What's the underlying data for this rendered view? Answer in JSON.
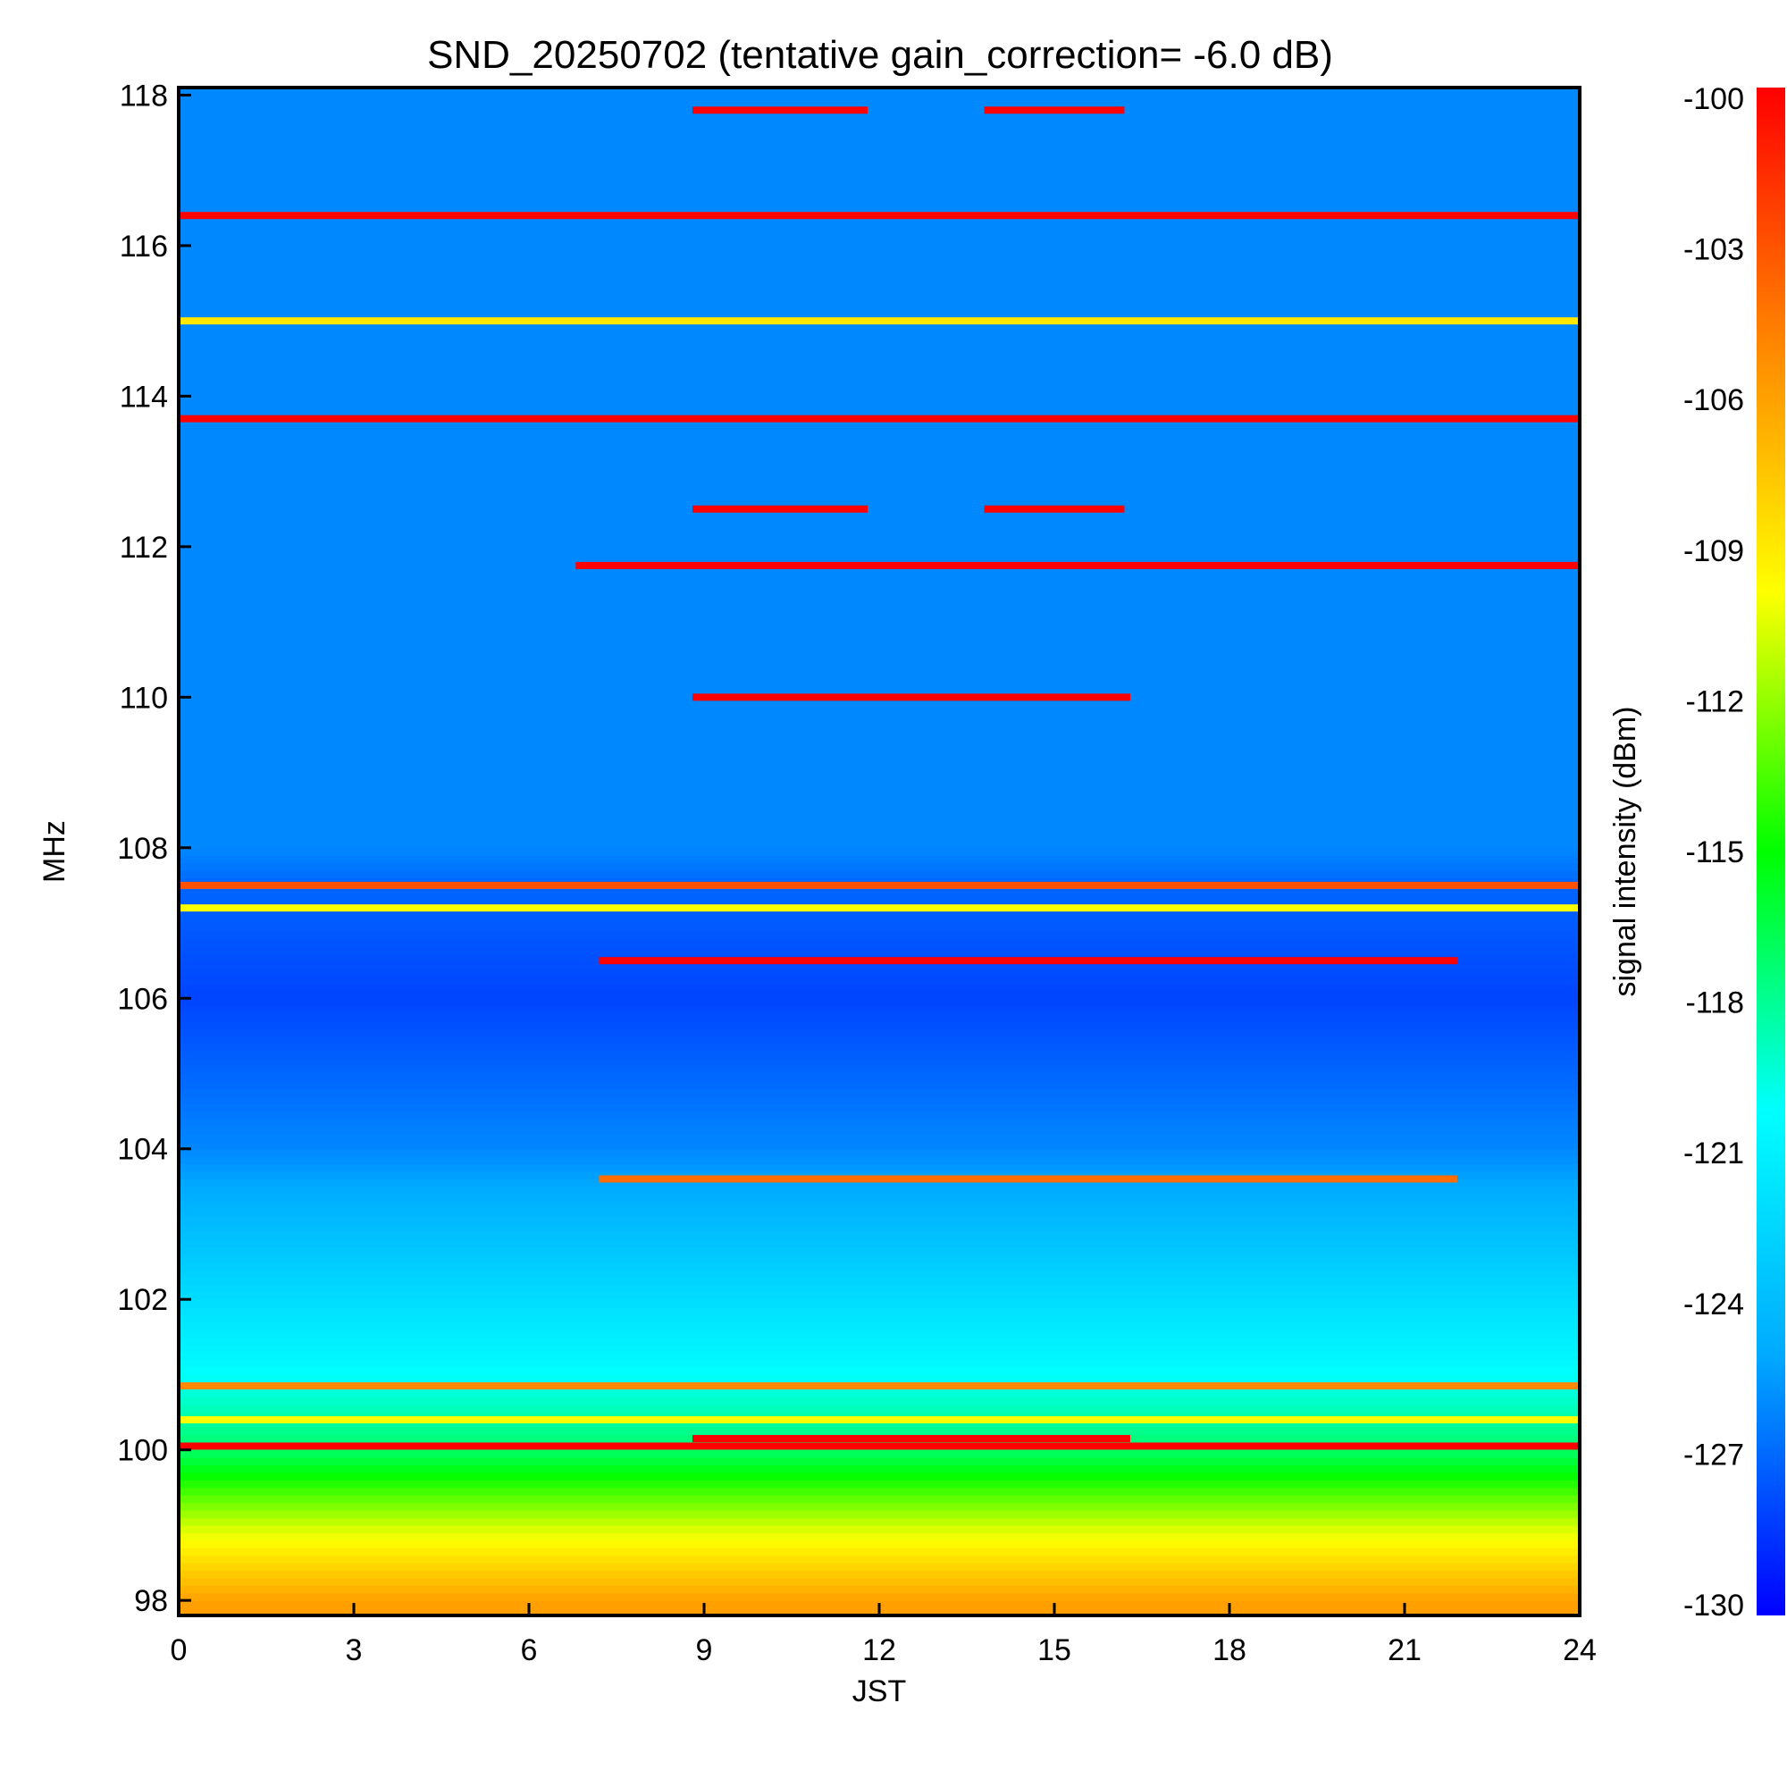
{
  "chart_data": {
    "type": "heatmap",
    "title": "SND_20250702 (tentative gain_correction= -6.0 dB)",
    "xlabel": "JST",
    "ylabel": "MHz",
    "colorbar_label": "signal intensity (dBm)",
    "xlim": [
      0,
      24
    ],
    "ylim": [
      97.8,
      118.1
    ],
    "x_ticks": [
      "0",
      "3",
      "6",
      "9",
      "12",
      "15",
      "18",
      "21",
      "24"
    ],
    "y_ticks": [
      "98",
      "100",
      "102",
      "104",
      "106",
      "108",
      "110",
      "112",
      "114",
      "116",
      "118"
    ],
    "colorbar_ticks": [
      "-100",
      "-103",
      "-106",
      "-109",
      "-112",
      "-115",
      "-118",
      "-121",
      "-124",
      "-127",
      "-130"
    ],
    "color_range_dbm": [
      -130,
      -100
    ],
    "colormap": [
      "#0000ff",
      "#00aaff",
      "#00ffff",
      "#00ff00",
      "#ffff00",
      "#ff8800",
      "#ff0000"
    ],
    "background_profile": [
      {
        "mhz": 98.0,
        "dbm": -106
      },
      {
        "mhz": 99.0,
        "dbm": -111
      },
      {
        "mhz": 100.0,
        "dbm": -117
      },
      {
        "mhz": 101.0,
        "dbm": -120
      },
      {
        "mhz": 102.0,
        "dbm": -122
      },
      {
        "mhz": 103.0,
        "dbm": -124
      },
      {
        "mhz": 104.0,
        "dbm": -126
      },
      {
        "mhz": 105.0,
        "dbm": -127
      },
      {
        "mhz": 106.0,
        "dbm": -128
      },
      {
        "mhz": 107.5,
        "dbm": -127
      },
      {
        "mhz": 108.0,
        "dbm": -126
      },
      {
        "mhz": 118.0,
        "dbm": -126
      }
    ],
    "strong_signals": [
      {
        "mhz": 117.8,
        "start_h": 8.8,
        "end_h": 11.8,
        "dbm": -100
      },
      {
        "mhz": 117.8,
        "start_h": 13.8,
        "end_h": 16.2,
        "dbm": -100
      },
      {
        "mhz": 116.4,
        "start_h": 0,
        "end_h": 24,
        "dbm": -100
      },
      {
        "mhz": 115.0,
        "start_h": 0,
        "end_h": 24,
        "dbm": -109
      },
      {
        "mhz": 113.7,
        "start_h": 0,
        "end_h": 24,
        "dbm": -100
      },
      {
        "mhz": 112.5,
        "start_h": 8.8,
        "end_h": 11.8,
        "dbm": -100
      },
      {
        "mhz": 112.5,
        "start_h": 13.8,
        "end_h": 16.2,
        "dbm": -100
      },
      {
        "mhz": 111.75,
        "start_h": 6.8,
        "end_h": 24,
        "dbm": -100
      },
      {
        "mhz": 110.0,
        "start_h": 8.8,
        "end_h": 16.3,
        "dbm": -100
      },
      {
        "mhz": 107.5,
        "start_h": 0,
        "end_h": 24,
        "dbm": -103
      },
      {
        "mhz": 107.2,
        "start_h": 0,
        "end_h": 24,
        "dbm": -110
      },
      {
        "mhz": 106.5,
        "start_h": 7.2,
        "end_h": 21.9,
        "dbm": -100
      },
      {
        "mhz": 103.6,
        "start_h": 7.2,
        "end_h": 21.9,
        "dbm": -104
      },
      {
        "mhz": 100.85,
        "start_h": 0,
        "end_h": 24,
        "dbm": -105
      },
      {
        "mhz": 100.4,
        "start_h": 0,
        "end_h": 24,
        "dbm": -110
      },
      {
        "mhz": 100.05,
        "start_h": 0,
        "end_h": 24,
        "dbm": -100
      },
      {
        "mhz": 100.15,
        "start_h": 8.8,
        "end_h": 16.3,
        "dbm": -100
      }
    ],
    "grid": false
  }
}
